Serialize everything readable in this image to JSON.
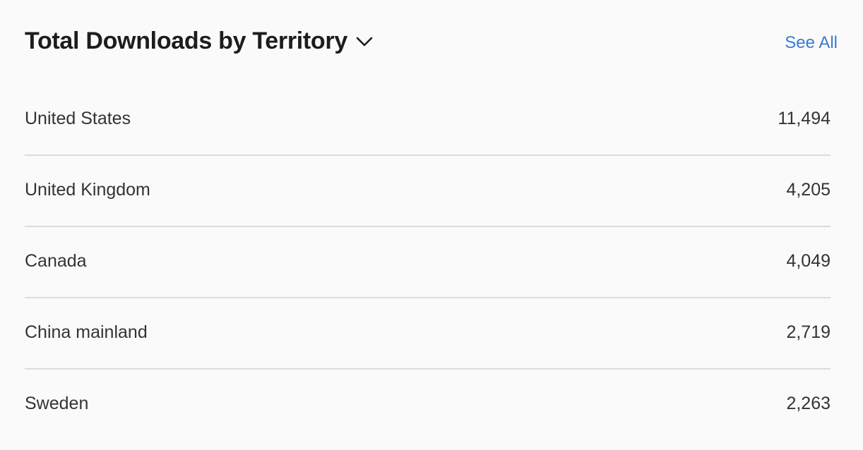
{
  "header": {
    "title": "Total Downloads by Territory",
    "dropdown_icon": "chevron-down-icon",
    "see_all_label": "See All"
  },
  "colors": {
    "background": "#fafafa",
    "title": "#1d1d1f",
    "text": "#333333",
    "link": "#3a7bd0",
    "divider": "#dcdcdc"
  },
  "territories": [
    {
      "name": "United States",
      "downloads": "11,494"
    },
    {
      "name": "United Kingdom",
      "downloads": "4,205"
    },
    {
      "name": "Canada",
      "downloads": "4,049"
    },
    {
      "name": "China mainland",
      "downloads": "2,719"
    },
    {
      "name": "Sweden",
      "downloads": "2,263"
    }
  ]
}
